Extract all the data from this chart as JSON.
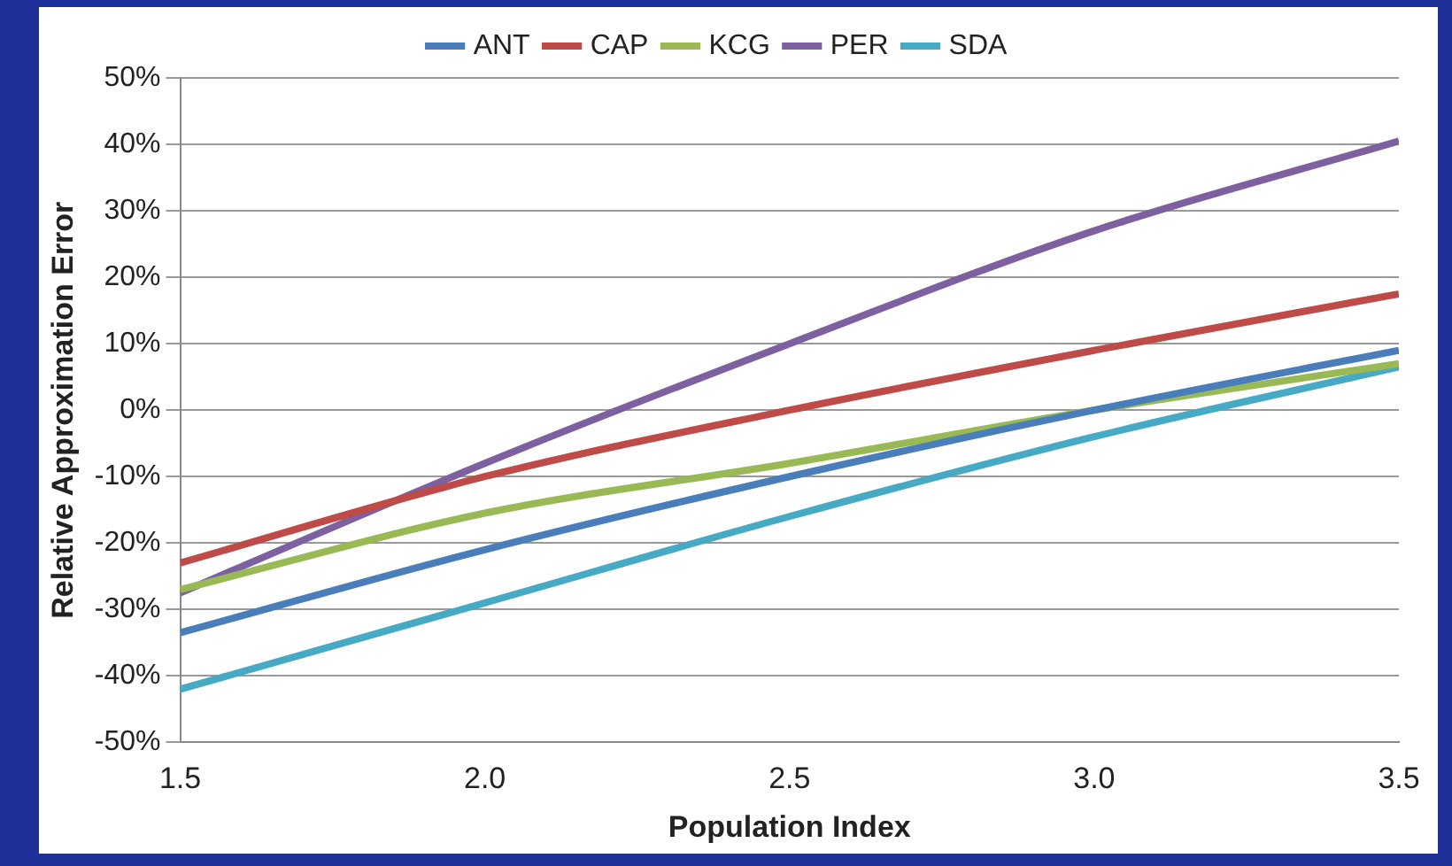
{
  "chart_data": {
    "type": "line",
    "xlabel": "Population Index",
    "ylabel": "Relative Approximation Error",
    "x": [
      1.5,
      2.0,
      2.5,
      3.0,
      3.5
    ],
    "series": [
      {
        "name": "ANT",
        "color": "#4a7ebb",
        "values": [
          -33.5,
          -21,
          -10,
          0,
          9
        ]
      },
      {
        "name": "CAP",
        "color": "#be4b48",
        "values": [
          -23,
          -10,
          0,
          9,
          17.5
        ]
      },
      {
        "name": "KCG",
        "color": "#98b954",
        "values": [
          -27,
          -15.5,
          -8,
          0,
          7
        ]
      },
      {
        "name": "PER",
        "color": "#7d60a0",
        "values": [
          -27.5,
          -8,
          10,
          27,
          40.5
        ]
      },
      {
        "name": "SDA",
        "color": "#46aac5",
        "values": [
          -42,
          -29,
          -16,
          -4,
          6.5
        ]
      }
    ],
    "xlim": [
      1.5,
      3.5
    ],
    "xticks": [
      1.5,
      {
        "value": 2,
        "label": "2.0"
      },
      2.5,
      {
        "value": 3,
        "label": "3.0"
      },
      3.5
    ],
    "ylim": [
      -50,
      50
    ],
    "yticks": [
      {
        "value": -50,
        "label": "-50%"
      },
      {
        "value": -40,
        "label": "-40%"
      },
      {
        "value": -30,
        "label": "-30%"
      },
      {
        "value": -20,
        "label": "-20%"
      },
      {
        "value": -10,
        "label": "-10%"
      },
      {
        "value": 0,
        "label": "0%"
      },
      {
        "value": 10,
        "label": "10%"
      },
      {
        "value": 20,
        "label": "20%"
      },
      {
        "value": 30,
        "label": "30%"
      },
      {
        "value": 40,
        "label": "40%"
      },
      {
        "value": 50,
        "label": "50%"
      }
    ],
    "grid": "y",
    "legend": "top",
    "marker": "none",
    "line_style": "solid"
  }
}
